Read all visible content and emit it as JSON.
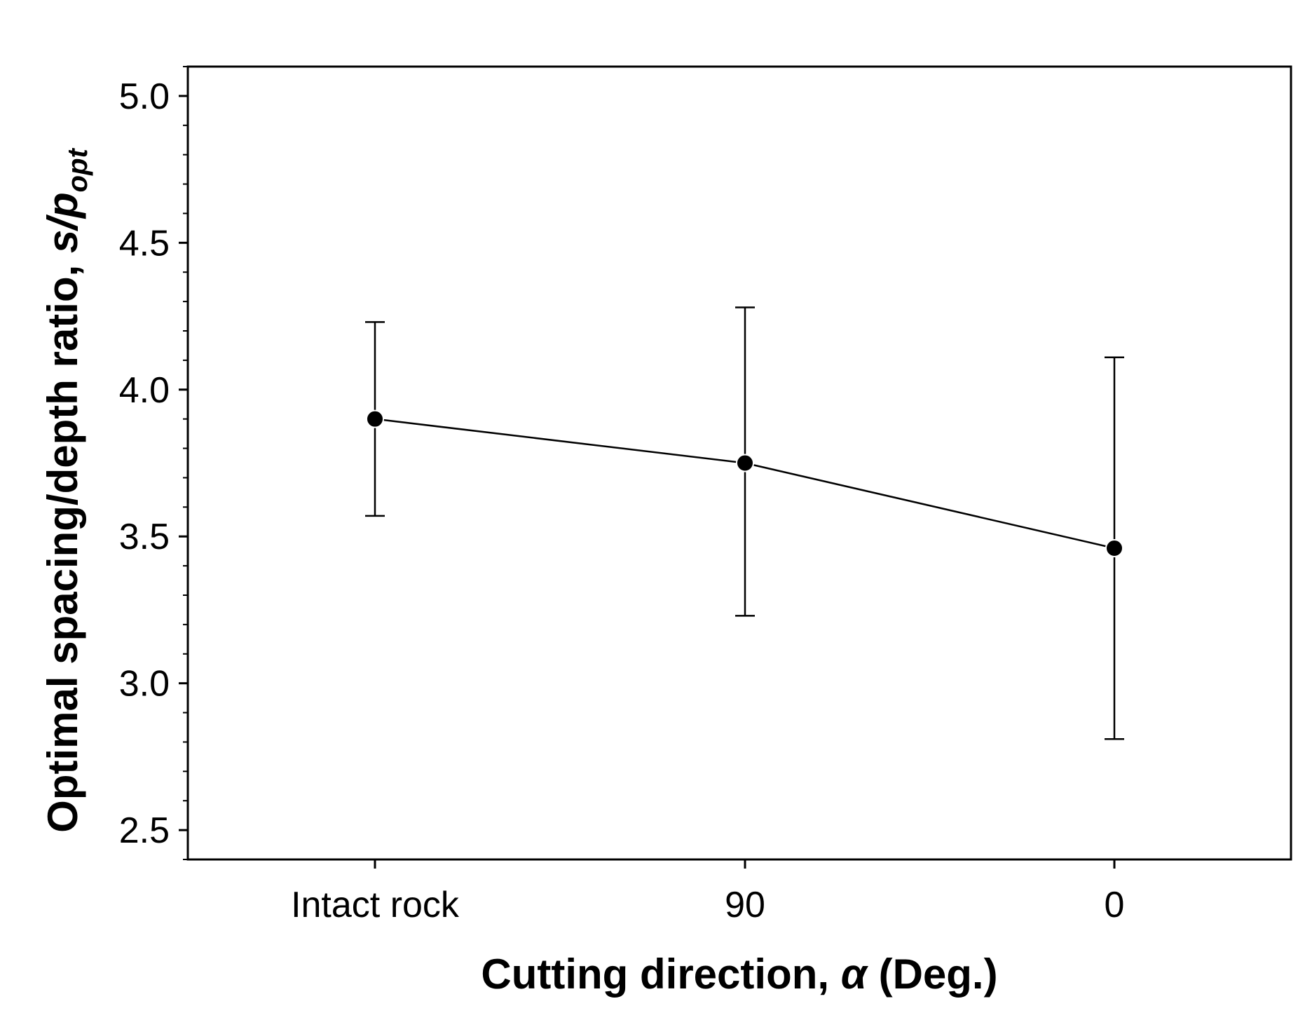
{
  "chart_data": {
    "type": "line",
    "title": "",
    "categories": [
      "Intact rock",
      "90",
      "0"
    ],
    "series": [
      {
        "name": "Optimal spacing/depth ratio",
        "values": [
          3.9,
          3.75,
          3.46
        ],
        "error_low": [
          3.57,
          3.23,
          2.81
        ],
        "error_high": [
          4.23,
          4.28,
          4.11
        ]
      }
    ],
    "xlabel": {
      "prefix": "Cutting direction, ",
      "symbol": "α",
      "suffix": " (Deg.)"
    },
    "ylabel": {
      "prefix": "Optimal spacing/depth ratio, ",
      "symbol_s": "s",
      "slash": "/",
      "symbol_p": "p",
      "subscript": "opt"
    },
    "ylim": [
      2.4,
      5.1
    ],
    "yticks": [
      {
        "value": 2.5,
        "label": "2.5"
      },
      {
        "value": 3.0,
        "label": "3.0"
      },
      {
        "value": 3.5,
        "label": "3.5"
      },
      {
        "value": 4.0,
        "label": "4.0"
      },
      {
        "value": 4.5,
        "label": "4.5"
      },
      {
        "value": 5.0,
        "label": "5.0"
      }
    ],
    "minor_ytick_step": 0.1,
    "grid": false,
    "legend": "none",
    "colors": {
      "line": "#000000",
      "marker": "#000000",
      "axes": "#000000"
    }
  }
}
